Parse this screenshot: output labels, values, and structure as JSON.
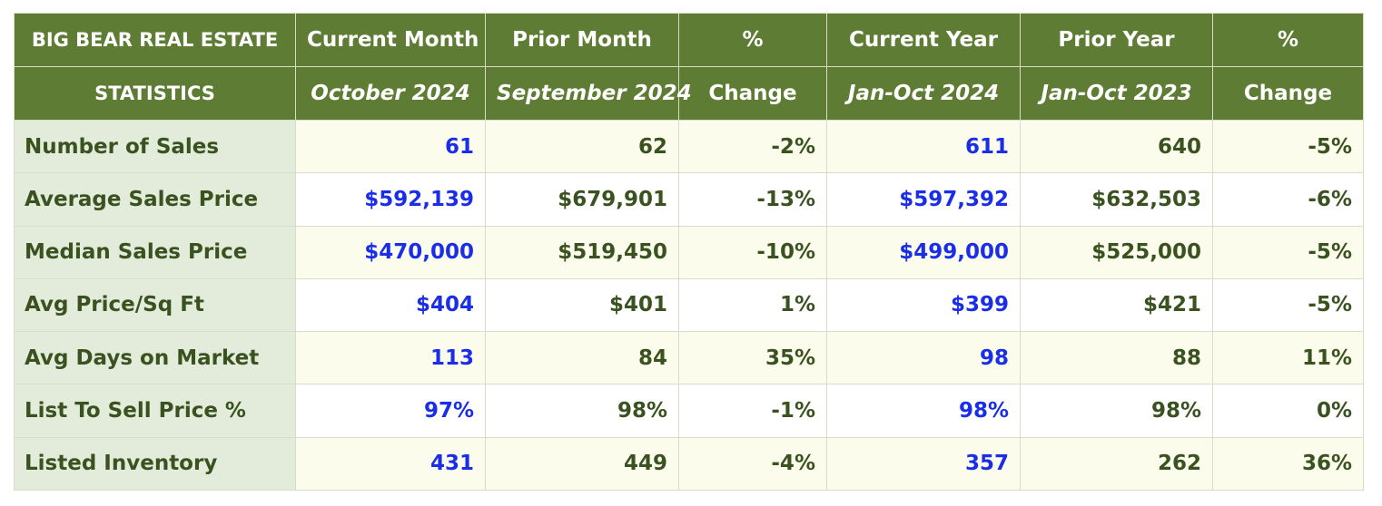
{
  "chart_data": {
    "type": "table",
    "header": {
      "corner_line1": "BIG BEAR REAL ESTATE",
      "corner_line2": "STATISTICS",
      "columns": [
        {
          "line1": "Current Month",
          "line2": "October 2024"
        },
        {
          "line1": "Prior Month",
          "line2": "September 2024"
        },
        {
          "line1": "%",
          "line2": "Change"
        },
        {
          "line1": "Current Year",
          "line2": "Jan-Oct 2024"
        },
        {
          "line1": "Prior Year",
          "line2": "Jan-Oct 2023"
        },
        {
          "line1": "%",
          "line2": "Change"
        }
      ]
    },
    "rows": [
      {
        "label": "Number of Sales",
        "values": [
          "61",
          "62",
          "-2%",
          "611",
          "640",
          "-5%"
        ]
      },
      {
        "label": "Average Sales Price",
        "values": [
          "$592,139",
          "$679,901",
          "-13%",
          "$597,392",
          "$632,503",
          "-6%"
        ]
      },
      {
        "label": "Median Sales Price",
        "values": [
          "$470,000",
          "$519,450",
          "-10%",
          "$499,000",
          "$525,000",
          "-5%"
        ]
      },
      {
        "label": "Avg Price/Sq Ft",
        "values": [
          "$404",
          "$401",
          "1%",
          "$399",
          "$421",
          "-5%"
        ]
      },
      {
        "label": "Avg Days on Market",
        "values": [
          "113",
          "84",
          "35%",
          "98",
          "88",
          "11%"
        ]
      },
      {
        "label": "List To Sell Price %",
        "values": [
          "97%",
          "98%",
          "-1%",
          "98%",
          "98%",
          "0%"
        ]
      },
      {
        "label": "Listed Inventory",
        "values": [
          "431",
          "449",
          "-4%",
          "357",
          "262",
          "36%"
        ]
      }
    ],
    "colors": {
      "header_bg": "#5e7c33",
      "label_bg": "#e3ebda",
      "text_green": "#3a5220",
      "text_blue": "#1a2ee8"
    }
  }
}
